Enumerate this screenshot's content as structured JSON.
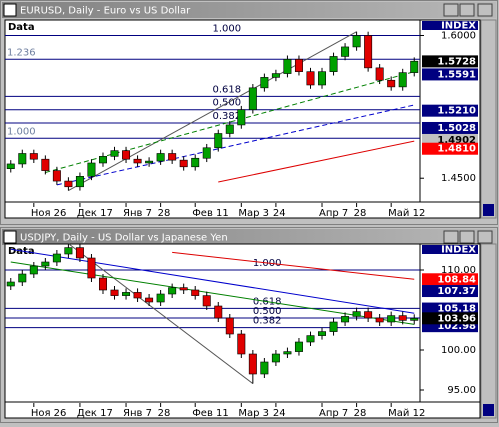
{
  "chart_data": [
    {
      "type": "candlestick",
      "title": "EURUSD, Daily - Euro vs US Dollar",
      "legend_label": "Data",
      "header": "INDEX",
      "up_color": "#00a000",
      "down_color": "#e00000",
      "categories": [
        null,
        null,
        "Ноя 26",
        null,
        null,
        null,
        "Дек 17",
        null,
        null,
        null,
        "Янв 7",
        null,
        null,
        "28",
        null,
        null,
        "Фев 11",
        null,
        null,
        null,
        "Мар 3",
        null,
        null,
        "24",
        null,
        null,
        null,
        "Апр 7",
        null,
        null,
        "28",
        null,
        null,
        "Май 12",
        null,
        null
      ],
      "open": [
        1.46,
        1.465,
        1.476,
        1.47,
        1.458,
        1.447,
        1.441,
        1.452,
        1.466,
        1.473,
        1.479,
        1.47,
        1.466,
        1.468,
        1.476,
        1.469,
        1.462,
        1.471,
        1.482,
        1.497,
        1.506,
        1.522,
        1.545,
        1.556,
        1.56,
        1.575,
        1.562,
        1.548,
        1.562,
        1.578,
        1.588,
        1.6,
        1.566,
        1.553,
        1.546,
        1.561
      ],
      "high": [
        1.469,
        1.48,
        1.48,
        1.474,
        1.462,
        1.451,
        1.456,
        1.47,
        1.477,
        1.483,
        1.483,
        1.474,
        1.472,
        1.48,
        1.48,
        1.473,
        1.475,
        1.486,
        1.501,
        1.51,
        1.526,
        1.549,
        1.56,
        1.564,
        1.579,
        1.579,
        1.566,
        1.566,
        1.582,
        1.592,
        1.604,
        1.604,
        1.57,
        1.557,
        1.565,
        1.577
      ],
      "low": [
        1.456,
        1.461,
        1.466,
        1.454,
        1.443,
        1.437,
        1.437,
        1.448,
        1.462,
        1.469,
        1.466,
        1.462,
        1.462,
        1.464,
        1.465,
        1.458,
        1.458,
        1.467,
        1.478,
        1.493,
        1.502,
        1.518,
        1.541,
        1.552,
        1.556,
        1.558,
        1.544,
        1.544,
        1.558,
        1.574,
        1.584,
        1.562,
        1.549,
        1.542,
        1.542,
        1.557
      ],
      "close": [
        1.465,
        1.476,
        1.47,
        1.458,
        1.447,
        1.441,
        1.452,
        1.466,
        1.473,
        1.479,
        1.47,
        1.466,
        1.468,
        1.476,
        1.469,
        1.462,
        1.471,
        1.482,
        1.497,
        1.506,
        1.522,
        1.545,
        1.556,
        1.56,
        1.575,
        1.562,
        1.548,
        1.562,
        1.578,
        1.588,
        1.6,
        1.566,
        1.553,
        1.546,
        1.561,
        1.573
      ],
      "ylim": [
        1.425,
        1.61
      ],
      "yticks": [
        {
          "value": 1.6,
          "label": "1.6000"
        },
        {
          "value": 1.45,
          "label": "1.4500"
        }
      ],
      "price_labels": [
        {
          "value": 1.5591,
          "label": "1.5591",
          "bg": "#000080",
          "fg": "#ffffff"
        },
        {
          "value": 1.521,
          "label": "1.5210",
          "bg": "#000080",
          "fg": "#ffffff"
        },
        {
          "value": 1.5028,
          "label": "1.5028",
          "bg": "#000080",
          "fg": "#ffffff"
        },
        {
          "value": 1.4902,
          "label": "1.4902",
          "bg": "#c0c0c0",
          "fg": "#000000"
        },
        {
          "value": 1.481,
          "label": "1.4810",
          "bg": "#ff0000",
          "fg": "#ffffff"
        },
        {
          "value": 1.5728,
          "label": "1.5728",
          "bg": "#000000",
          "fg": "#ffffff"
        }
      ],
      "fib_levels": [
        {
          "label": "1.000",
          "value": 1.6,
          "anchor": "mid"
        },
        {
          "label": "1.236",
          "value": 1.575,
          "anchor": "left"
        },
        {
          "label": "0.618",
          "value": 1.536,
          "anchor": "mid"
        },
        {
          "label": "0.500",
          "value": 1.522,
          "anchor": "mid"
        },
        {
          "label": "0.382",
          "value": 1.508,
          "anchor": "mid"
        },
        {
          "label": "1.000",
          "value": 1.492,
          "anchor": "left"
        }
      ],
      "trend_lines": [
        {
          "color": "#555555",
          "dash": false,
          "points": [
            [
              5,
              1.437
            ],
            [
              30,
              1.604
            ]
          ]
        },
        {
          "color": "#0000cc",
          "dash": true,
          "points": [
            [
              4,
              1.443
            ],
            [
              35,
              1.527
            ]
          ]
        },
        {
          "color": "#008000",
          "dash": true,
          "points": [
            [
              3,
              1.456
            ],
            [
              35,
              1.562
            ]
          ]
        },
        {
          "color": "#dd0000",
          "dash": false,
          "points": [
            [
              18,
              1.446
            ],
            [
              35,
              1.489
            ]
          ]
        }
      ]
    },
    {
      "type": "candlestick",
      "title": "USDJPY, Daily - US Dollar vs Japanese Yen",
      "legend_label": "Data",
      "header": "INDEX",
      "up_color": "#00a000",
      "down_color": "#e00000",
      "categories": [
        null,
        null,
        "Ноя 26",
        null,
        null,
        null,
        "Дек 17",
        null,
        null,
        null,
        "Янв 7",
        null,
        null,
        "28",
        null,
        null,
        "Фев 11",
        null,
        null,
        null,
        "Мар 3",
        null,
        null,
        "24",
        null,
        null,
        null,
        "Апр 7",
        null,
        null,
        "28",
        null,
        null,
        "Май 12",
        null,
        null
      ],
      "open": [
        108.0,
        108.5,
        109.5,
        110.5,
        111.0,
        112.0,
        112.8,
        111.5,
        109.0,
        107.5,
        106.8,
        107.2,
        106.5,
        106.0,
        107.0,
        107.8,
        107.5,
        106.8,
        105.5,
        104.0,
        102.0,
        99.5,
        97.0,
        98.5,
        99.5,
        99.8,
        101.0,
        101.8,
        102.3,
        103.5,
        104.2,
        104.8,
        104.0,
        103.5,
        104.3,
        103.7
      ],
      "high": [
        109.0,
        110.0,
        111.0,
        111.5,
        112.5,
        113.3,
        113.3,
        112.0,
        109.5,
        108.0,
        107.7,
        107.7,
        107.0,
        107.5,
        108.3,
        108.3,
        108.0,
        107.3,
        106.0,
        104.5,
        102.5,
        100.0,
        99.0,
        100.0,
        100.3,
        101.5,
        102.3,
        102.8,
        104.0,
        104.7,
        105.3,
        105.3,
        104.5,
        104.8,
        104.8,
        104.46
      ],
      "low": [
        107.5,
        108.0,
        109.0,
        110.0,
        110.5,
        111.5,
        111.0,
        108.5,
        107.0,
        106.3,
        106.3,
        106.0,
        105.5,
        105.5,
        106.5,
        107.0,
        106.3,
        105.0,
        103.5,
        101.5,
        99.0,
        95.8,
        96.5,
        98.0,
        99.0,
        99.3,
        100.5,
        101.3,
        101.8,
        103.0,
        103.7,
        103.5,
        103.0,
        103.0,
        103.2,
        103.2
      ],
      "close": [
        108.5,
        109.5,
        110.5,
        111.0,
        112.0,
        112.8,
        111.5,
        109.0,
        107.5,
        106.8,
        107.2,
        106.5,
        106.0,
        107.0,
        107.8,
        107.5,
        106.8,
        105.5,
        104.0,
        102.0,
        99.5,
        97.0,
        98.5,
        99.5,
        99.8,
        101.0,
        101.8,
        102.3,
        103.5,
        104.2,
        104.8,
        104.0,
        103.5,
        104.3,
        103.7,
        103.96
      ],
      "ylim": [
        93.5,
        112.5
      ],
      "yticks": [
        {
          "value": 110,
          "label": "110.00"
        },
        {
          "value": 100,
          "label": "100.00"
        },
        {
          "value": 95,
          "label": "95.00"
        }
      ],
      "price_labels": [
        {
          "value": 108.84,
          "label": "108.84",
          "bg": "#ff0000",
          "fg": "#ffffff"
        },
        {
          "value": 107.37,
          "label": "107.37",
          "bg": "#000080",
          "fg": "#ffffff"
        },
        {
          "value": 105.18,
          "label": "105.18",
          "bg": "#000080",
          "fg": "#ffffff"
        },
        {
          "value": 102.98,
          "label": "102.98",
          "bg": "#000080",
          "fg": "#ffffff"
        },
        {
          "value": 103.96,
          "label": "103.96",
          "bg": "#000000",
          "fg": "#ffffff"
        }
      ],
      "fib_levels": [
        {
          "label": "1.000",
          "value": 110.0,
          "anchor": "end"
        },
        {
          "label": "0.618",
          "value": 105.2,
          "anchor": "end"
        },
        {
          "label": "0.500",
          "value": 104.0,
          "anchor": "end"
        },
        {
          "label": "0.382",
          "value": 102.8,
          "anchor": "end"
        }
      ],
      "trend_lines": [
        {
          "color": "#555555",
          "dash": false,
          "points": [
            [
              5,
              113.3
            ],
            [
              21,
              95.8
            ]
          ]
        },
        {
          "color": "#0000cc",
          "dash": false,
          "points": [
            [
              0,
              112.6
            ],
            [
              35,
              104.6
            ]
          ]
        },
        {
          "color": "#008000",
          "dash": false,
          "points": [
            [
              0,
              111.0
            ],
            [
              35,
              103.2
            ]
          ]
        },
        {
          "color": "#dd0000",
          "dash": false,
          "points": [
            [
              14,
              112.2
            ],
            [
              35,
              108.84
            ]
          ]
        }
      ]
    }
  ]
}
